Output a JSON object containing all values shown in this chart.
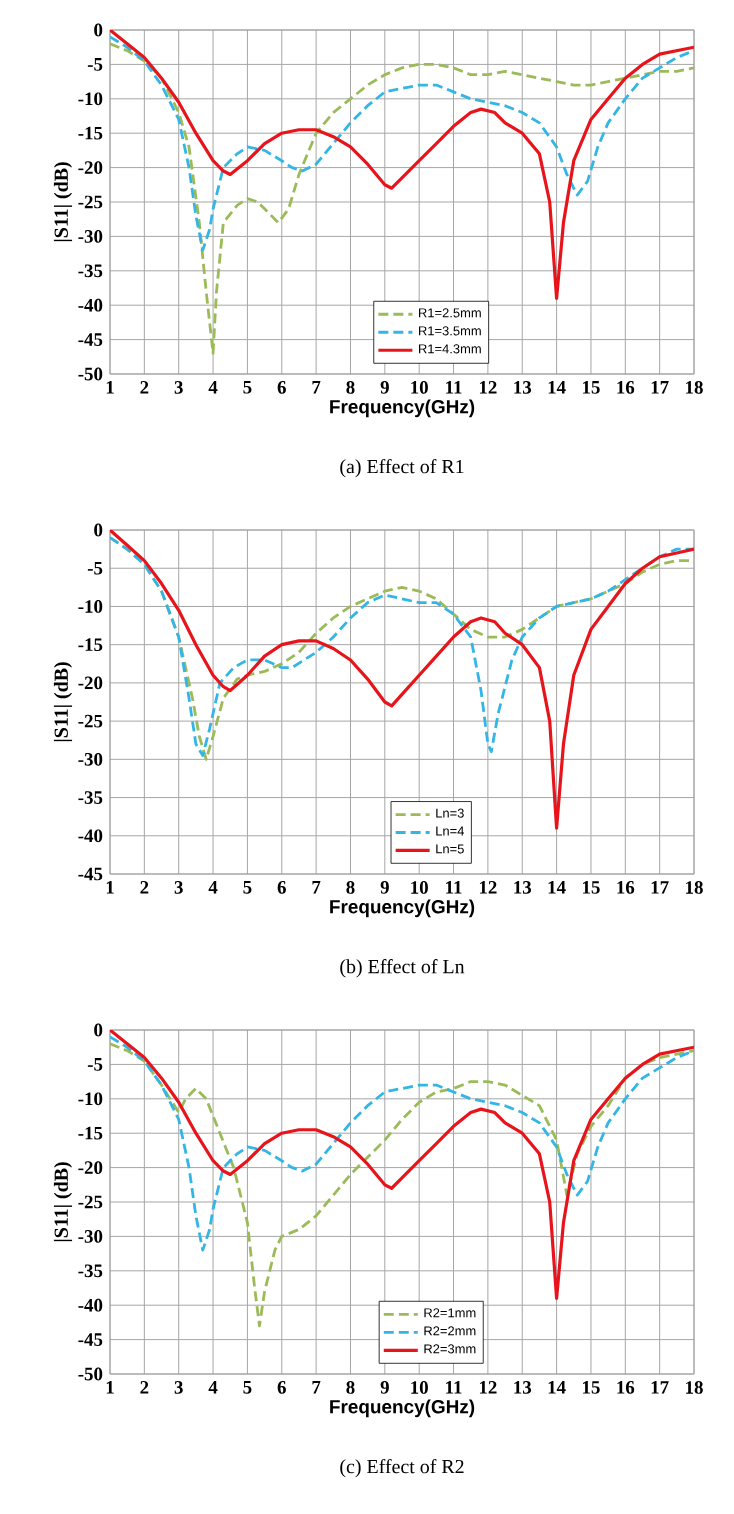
{
  "chart_data": [
    {
      "type": "line",
      "title": "(a) Effect of R1",
      "xlabel": "Frequency(GHz)",
      "ylabel": "|S11| (dB)",
      "xlim": [
        1,
        18
      ],
      "ylim": [
        -50,
        0
      ],
      "xticks": [
        1,
        2,
        3,
        4,
        5,
        6,
        7,
        8,
        9,
        10,
        11,
        12,
        13,
        14,
        15,
        16,
        17,
        18
      ],
      "yticks": [
        -50,
        -45,
        -40,
        -35,
        -30,
        -25,
        -20,
        -15,
        -10,
        -5,
        0
      ],
      "grid": true,
      "legend": "bottom",
      "marker": "none",
      "series": [
        {
          "name": "R1=2.5mm",
          "color": "#9bbb59",
          "line_style": "dashed",
          "x": [
            1,
            1.5,
            2,
            2.5,
            3,
            3.3,
            3.6,
            3.8,
            4,
            4.1,
            4.3,
            4.7,
            5,
            5.3,
            5.6,
            5.9,
            6.2,
            6.5,
            7,
            7.5,
            8,
            8.5,
            9,
            9.5,
            10,
            10.5,
            11,
            11.5,
            12,
            12.5,
            13,
            13.5,
            14,
            14.5,
            15,
            15.5,
            16,
            16.5,
            17,
            17.5,
            18
          ],
          "values": [
            -2,
            -3,
            -4.5,
            -7,
            -12,
            -17,
            -28,
            -38,
            -47,
            -38,
            -28,
            -25.5,
            -24.5,
            -25,
            -26.5,
            -28,
            -26,
            -21,
            -15,
            -12,
            -10,
            -8,
            -6.5,
            -5.5,
            -5,
            -5,
            -5.5,
            -6.5,
            -6.5,
            -6,
            -6.5,
            -7,
            -7.5,
            -8,
            -8,
            -7.5,
            -7,
            -6.5,
            -6,
            -6,
            -5.5
          ]
        },
        {
          "name": "R1=3.5mm",
          "color": "#33b5e5",
          "line_style": "dashed",
          "x": [
            1,
            1.5,
            2,
            2.5,
            3,
            3.3,
            3.5,
            3.7,
            3.9,
            4,
            4.3,
            4.7,
            5,
            5.5,
            6,
            6.3,
            6.6,
            7,
            7.5,
            8,
            8.5,
            9,
            9.5,
            10,
            10.5,
            11,
            11.5,
            12,
            12.5,
            13,
            13.5,
            14,
            14.3,
            14.6,
            14.9,
            15.2,
            15.5,
            16,
            16.5,
            17,
            17.5,
            18
          ],
          "values": [
            -1,
            -2.5,
            -4.5,
            -8,
            -13,
            -20,
            -27,
            -32,
            -29,
            -26,
            -20,
            -18,
            -17,
            -17.5,
            -19,
            -20,
            -20.5,
            -19.5,
            -16.5,
            -13.5,
            -11,
            -9,
            -8.5,
            -8,
            -8,
            -9,
            -10,
            -10.5,
            -11,
            -12,
            -13.5,
            -17,
            -21,
            -24,
            -22,
            -17,
            -13.5,
            -10,
            -7,
            -5.5,
            -4,
            -3
          ]
        },
        {
          "name": "R1=4.3mm",
          "color": "#e8141b",
          "line_style": "solid",
          "x": [
            1,
            1.5,
            2,
            2.5,
            3,
            3.5,
            4,
            4.3,
            4.5,
            5,
            5.5,
            6,
            6.5,
            7,
            7.5,
            8,
            8.5,
            9,
            9.2,
            9.5,
            10,
            10.5,
            11,
            11.5,
            11.8,
            12.2,
            12.5,
            13,
            13.5,
            13.8,
            14,
            14.2,
            14.5,
            15,
            15.5,
            16,
            16.5,
            17,
            17.5,
            18
          ],
          "values": [
            0,
            -2,
            -4,
            -7,
            -10.5,
            -15,
            -19,
            -20.5,
            -21,
            -19,
            -16.5,
            -15,
            -14.5,
            -14.5,
            -15.5,
            -17,
            -19.5,
            -22.5,
            -23,
            -21.5,
            -19,
            -16.5,
            -14,
            -12,
            -11.5,
            -12,
            -13.5,
            -15,
            -18,
            -25,
            -39,
            -28,
            -19,
            -13,
            -10,
            -7,
            -5,
            -3.5,
            -3,
            -2.5
          ]
        }
      ]
    },
    {
      "type": "line",
      "title": "(b) Effect of Ln",
      "xlabel": "Frequency(GHz)",
      "ylabel": "|S11| (dB)",
      "xlim": [
        1,
        18
      ],
      "ylim": [
        -45,
        0
      ],
      "xticks": [
        1,
        2,
        3,
        4,
        5,
        6,
        7,
        8,
        9,
        10,
        11,
        12,
        13,
        14,
        15,
        16,
        17,
        18
      ],
      "yticks": [
        -45,
        -40,
        -35,
        -30,
        -25,
        -20,
        -15,
        -10,
        -5,
        0
      ],
      "grid": true,
      "legend": "bottom",
      "marker": "none",
      "series": [
        {
          "name": "Ln=3",
          "color": "#9bbb59",
          "line_style": "dashed",
          "x": [
            1,
            1.5,
            2,
            2.5,
            3,
            3.4,
            3.6,
            3.8,
            4,
            4.3,
            4.7,
            5,
            5.5,
            6,
            6.5,
            7,
            7.5,
            8,
            8.5,
            9,
            9.5,
            10,
            10.5,
            11,
            11.5,
            12,
            12.5,
            13,
            13.5,
            14,
            14.5,
            15,
            15.5,
            16,
            16.5,
            17,
            17.5,
            18
          ],
          "values": [
            -1,
            -2.5,
            -4.5,
            -8,
            -14,
            -22,
            -27,
            -30,
            -27,
            -22,
            -19.5,
            -19,
            -18.5,
            -17.5,
            -16,
            -13.5,
            -11.5,
            -10,
            -9,
            -8,
            -7.5,
            -8,
            -9,
            -11,
            -13,
            -14,
            -14,
            -13,
            -11.5,
            -10,
            -9.5,
            -9,
            -8,
            -7,
            -5.5,
            -4.5,
            -4,
            -4
          ]
        },
        {
          "name": "Ln=4",
          "color": "#33b5e5",
          "line_style": "dashed",
          "x": [
            1,
            1.5,
            2,
            2.5,
            3,
            3.3,
            3.5,
            3.7,
            3.9,
            4.2,
            4.6,
            5,
            5.5,
            6,
            6.3,
            7,
            7.5,
            8,
            8.5,
            9,
            9.5,
            10,
            10.5,
            11,
            11.5,
            11.8,
            12,
            12.1,
            12.3,
            12.7,
            13,
            13.5,
            14,
            14.5,
            15,
            15.5,
            16,
            16.5,
            17,
            17.5,
            18
          ],
          "values": [
            -1,
            -2.5,
            -4.5,
            -8,
            -14,
            -22,
            -28,
            -29.5,
            -26,
            -20,
            -18,
            -17,
            -17,
            -18,
            -18,
            -16,
            -14,
            -11.5,
            -9.5,
            -8.5,
            -9,
            -9.5,
            -9.5,
            -11,
            -14,
            -21,
            -28,
            -29,
            -24,
            -17,
            -14,
            -11.5,
            -10,
            -9.5,
            -9,
            -8,
            -6.5,
            -5,
            -3.5,
            -2.5,
            -2.5
          ]
        },
        {
          "name": "Ln=5",
          "color": "#e8141b",
          "line_style": "solid",
          "x": [
            1,
            1.5,
            2,
            2.5,
            3,
            3.5,
            4,
            4.3,
            4.5,
            5,
            5.5,
            6,
            6.5,
            7,
            7.5,
            8,
            8.5,
            9,
            9.2,
            9.5,
            10,
            10.5,
            11,
            11.5,
            11.8,
            12.2,
            12.5,
            13,
            13.5,
            13.8,
            14,
            14.2,
            14.5,
            15,
            15.5,
            16,
            16.5,
            17,
            17.5,
            18
          ],
          "values": [
            0,
            -2,
            -4,
            -7,
            -10.5,
            -15,
            -19,
            -20.5,
            -21,
            -19,
            -16.5,
            -15,
            -14.5,
            -14.5,
            -15.5,
            -17,
            -19.5,
            -22.5,
            -23,
            -21.5,
            -19,
            -16.5,
            -14,
            -12,
            -11.5,
            -12,
            -13.5,
            -15,
            -18,
            -25,
            -39,
            -28,
            -19,
            -13,
            -10,
            -7,
            -5,
            -3.5,
            -3,
            -2.5
          ]
        }
      ]
    },
    {
      "type": "line",
      "title": "(c) Effect of R2",
      "xlabel": "Frequency(GHz)",
      "ylabel": "|S11| (dB)",
      "xlim": [
        1,
        18
      ],
      "ylim": [
        -50,
        0
      ],
      "xticks": [
        1,
        2,
        3,
        4,
        5,
        6,
        7,
        8,
        9,
        10,
        11,
        12,
        13,
        14,
        15,
        16,
        17,
        18
      ],
      "yticks": [
        -50,
        -45,
        -40,
        -35,
        -30,
        -25,
        -20,
        -15,
        -10,
        -5,
        0
      ],
      "grid": true,
      "legend": "bottom",
      "marker": "none",
      "series": [
        {
          "name": "R2=1mm",
          "color": "#9bbb59",
          "line_style": "dashed",
          "x": [
            1,
            1.5,
            2,
            2.5,
            3,
            3.2,
            3.5,
            3.8,
            4.2,
            4.6,
            5,
            5.2,
            5.35,
            5.5,
            5.8,
            6,
            6.5,
            7,
            7.5,
            8,
            8.5,
            9,
            9.5,
            10,
            10.5,
            11,
            11.5,
            12,
            12.5,
            13,
            13.5,
            14,
            14.3,
            14.6,
            15,
            15.5,
            16,
            16.5,
            17,
            17.5,
            18
          ],
          "values": [
            -2,
            -3,
            -4.5,
            -8,
            -12,
            -10,
            -8.5,
            -10,
            -15,
            -20,
            -28,
            -37,
            -43,
            -38,
            -32,
            -30,
            -29,
            -27,
            -24,
            -21,
            -18.5,
            -16,
            -13,
            -10.5,
            -9,
            -8.5,
            -7.5,
            -7.5,
            -8,
            -9.5,
            -11,
            -16,
            -24,
            -18,
            -14,
            -11,
            -7,
            -5,
            -4,
            -3.5,
            -3
          ]
        },
        {
          "name": "R2=2mm",
          "color": "#33b5e5",
          "line_style": "dashed",
          "x": [
            1,
            1.5,
            2,
            2.5,
            3,
            3.3,
            3.5,
            3.7,
            3.9,
            4,
            4.3,
            4.7,
            5,
            5.5,
            6,
            6.3,
            6.6,
            7,
            7.5,
            8,
            8.5,
            9,
            9.5,
            10,
            10.5,
            11,
            11.5,
            12,
            12.5,
            13,
            13.5,
            14,
            14.3,
            14.6,
            14.9,
            15.2,
            15.5,
            16,
            16.5,
            17,
            17.5,
            18
          ],
          "values": [
            -1,
            -2.5,
            -4.5,
            -8,
            -13,
            -20,
            -27,
            -32,
            -29,
            -26,
            -20,
            -18,
            -17,
            -17.5,
            -19,
            -20,
            -20.5,
            -19.5,
            -16.5,
            -13.5,
            -11,
            -9,
            -8.5,
            -8,
            -8,
            -9,
            -10,
            -10.5,
            -11,
            -12,
            -13.5,
            -17,
            -21,
            -24,
            -22,
            -17,
            -13.5,
            -10,
            -7,
            -5.5,
            -4,
            -3
          ]
        },
        {
          "name": "R2=3mm",
          "color": "#e8141b",
          "line_style": "solid",
          "x": [
            1,
            1.5,
            2,
            2.5,
            3,
            3.5,
            4,
            4.3,
            4.5,
            5,
            5.5,
            6,
            6.5,
            7,
            7.5,
            8,
            8.5,
            9,
            9.2,
            9.5,
            10,
            10.5,
            11,
            11.5,
            11.8,
            12.2,
            12.5,
            13,
            13.5,
            13.8,
            14,
            14.2,
            14.5,
            15,
            15.5,
            16,
            16.5,
            17,
            17.5,
            18
          ],
          "values": [
            0,
            -2,
            -4,
            -7,
            -10.5,
            -15,
            -19,
            -20.5,
            -21,
            -19,
            -16.5,
            -15,
            -14.5,
            -14.5,
            -15.5,
            -17,
            -19.5,
            -22.5,
            -23,
            -21.5,
            -19,
            -16.5,
            -14,
            -12,
            -11.5,
            -12,
            -13.5,
            -15,
            -18,
            -25,
            -39,
            -28,
            -19,
            -13,
            -10,
            -7,
            -5,
            -3.5,
            -3,
            -2.5
          ]
        }
      ]
    }
  ]
}
